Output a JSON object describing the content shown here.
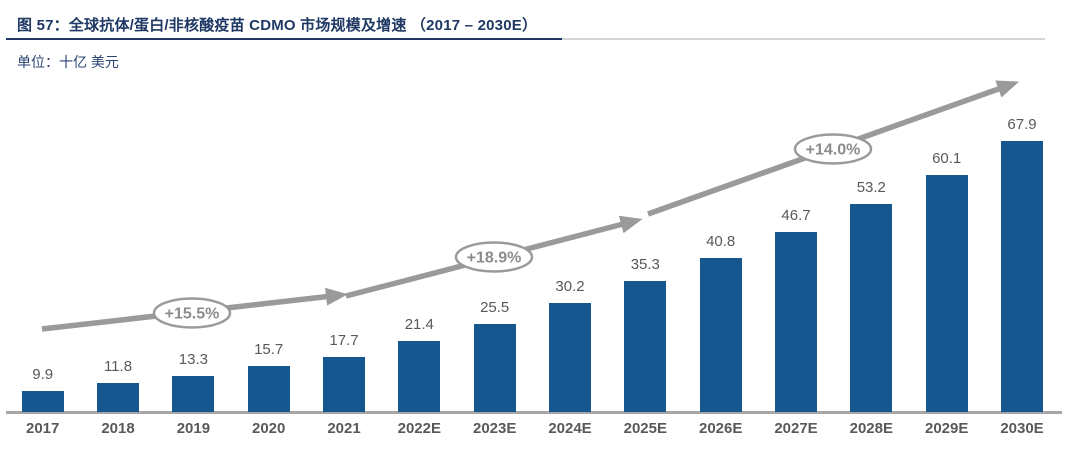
{
  "figure": {
    "title": "图 57：全球抗体/蛋白/非核酸疫苗 CDMO 市场规模及增速 （2017 – 2030E）",
    "unit_label": "单位：十亿 美元"
  },
  "colors": {
    "bar": "#16578f",
    "title_navy": "#1f3864",
    "label_gray": "#595959",
    "arrow_gray": "#9a9a9a",
    "axis_line": "#a6a6a6",
    "ellipse_text": "#8c8c8c"
  },
  "chart_data": {
    "type": "bar",
    "title": "全球抗体/蛋白/非核酸疫苗 CDMO 市场规模及增速（2017 – 2030E）",
    "unit": "十亿 美元",
    "categories": [
      "2017",
      "2018",
      "2019",
      "2020",
      "2021",
      "2022E",
      "2023E",
      "2024E",
      "2025E",
      "2026E",
      "2027E",
      "2028E",
      "2029E",
      "2030E"
    ],
    "values": [
      9.9,
      11.8,
      13.3,
      15.7,
      17.7,
      21.4,
      25.5,
      30.2,
      35.3,
      40.8,
      46.7,
      53.2,
      60.1,
      67.9
    ],
    "xlabel": "",
    "ylabel": "",
    "ylim": [
      5,
      70
    ],
    "grid": false,
    "legend": false,
    "data_labels": true,
    "trend_arrow": true,
    "annotations": [
      {
        "label": "+15.5%",
        "segment": 1
      },
      {
        "label": "+18.9%",
        "segment": 2
      },
      {
        "label": "+14.0%",
        "segment": 3
      }
    ]
  }
}
